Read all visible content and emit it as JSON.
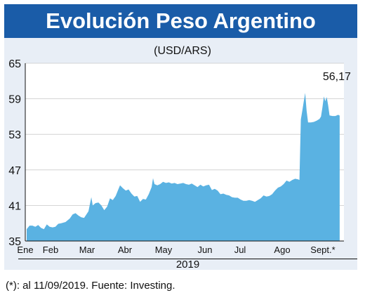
{
  "chart_data": {
    "type": "area",
    "title": "Evolución Peso Argentino",
    "subtitle": "(USD/ARS)",
    "xlabel": "2019",
    "ylabel": "",
    "ylim": [
      35,
      65
    ],
    "yticks": [
      35,
      41,
      47,
      53,
      59,
      65
    ],
    "month_labels": [
      "Ene",
      "Feb",
      "Mar",
      "Abr",
      "May",
      "Jun",
      "Jul",
      "Ago",
      "Sept.*"
    ],
    "last_value_label": "56,17",
    "series": [
      {
        "name": "",
        "color": "#5ab2e2",
        "points": [
          [
            1,
            37.0
          ],
          [
            3,
            37.6
          ],
          [
            5,
            37.6
          ],
          [
            7,
            37.4
          ],
          [
            9,
            37.7
          ],
          [
            11,
            37.2
          ],
          [
            13,
            37.0
          ],
          [
            15,
            37.8
          ],
          [
            17,
            37.4
          ],
          [
            19,
            37.3
          ],
          [
            21,
            37.4
          ],
          [
            23,
            37.9
          ],
          [
            25,
            38.0
          ],
          [
            28,
            38.2
          ],
          [
            31,
            38.8
          ],
          [
            33,
            39.5
          ],
          [
            35,
            39.7
          ],
          [
            37,
            39.3
          ],
          [
            39,
            39.0
          ],
          [
            41,
            38.9
          ],
          [
            44,
            40.0
          ],
          [
            46,
            42.4
          ],
          [
            47,
            41.0
          ],
          [
            49,
            41.4
          ],
          [
            51,
            41.5
          ],
          [
            53,
            41.0
          ],
          [
            55,
            40.2
          ],
          [
            57,
            40.8
          ],
          [
            59,
            42.2
          ],
          [
            61,
            41.9
          ],
          [
            63,
            42.6
          ],
          [
            65,
            43.8
          ],
          [
            66,
            44.4
          ],
          [
            68,
            43.9
          ],
          [
            70,
            43.5
          ],
          [
            72,
            43.7
          ],
          [
            74,
            43.0
          ],
          [
            76,
            42.5
          ],
          [
            78,
            42.6
          ],
          [
            80,
            41.6
          ],
          [
            82,
            42.1
          ],
          [
            84,
            42.0
          ],
          [
            86,
            42.9
          ],
          [
            88,
            44.1
          ],
          [
            89,
            45.6
          ],
          [
            90,
            44.6
          ],
          [
            92,
            44.4
          ],
          [
            94,
            44.6
          ],
          [
            96,
            45.0
          ],
          [
            98,
            44.8
          ],
          [
            100,
            44.9
          ],
          [
            102,
            44.7
          ],
          [
            104,
            44.8
          ],
          [
            106,
            44.6
          ],
          [
            108,
            44.7
          ],
          [
            110,
            44.8
          ],
          [
            112,
            44.6
          ],
          [
            114,
            44.5
          ],
          [
            116,
            44.7
          ],
          [
            118,
            44.4
          ],
          [
            120,
            44.1
          ],
          [
            122,
            44.5
          ],
          [
            124,
            44.2
          ],
          [
            126,
            44.4
          ],
          [
            128,
            44.5
          ],
          [
            130,
            43.6
          ],
          [
            132,
            43.8
          ],
          [
            134,
            43.5
          ],
          [
            136,
            42.9
          ],
          [
            138,
            43.0
          ],
          [
            140,
            42.8
          ],
          [
            142,
            42.7
          ],
          [
            144,
            42.4
          ],
          [
            146,
            42.3
          ],
          [
            148,
            42.3
          ],
          [
            150,
            42.0
          ],
          [
            152,
            41.8
          ],
          [
            154,
            41.8
          ],
          [
            156,
            41.9
          ],
          [
            158,
            41.8
          ],
          [
            160,
            41.6
          ],
          [
            162,
            41.9
          ],
          [
            164,
            42.2
          ],
          [
            166,
            42.7
          ],
          [
            168,
            42.5
          ],
          [
            170,
            42.6
          ],
          [
            172,
            42.9
          ],
          [
            174,
            43.5
          ],
          [
            176,
            44.0
          ],
          [
            178,
            44.2
          ],
          [
            180,
            44.6
          ],
          [
            182,
            45.2
          ],
          [
            184,
            45.0
          ],
          [
            186,
            45.3
          ],
          [
            188,
            45.5
          ],
          [
            190,
            45.4
          ],
          [
            191,
            45.3
          ],
          [
            192,
            55.5
          ],
          [
            193,
            57.0
          ],
          [
            194,
            58.5
          ],
          [
            195,
            60.0
          ],
          [
            196,
            57.0
          ],
          [
            197,
            55.0
          ],
          [
            199,
            55.0
          ],
          [
            201,
            55.1
          ],
          [
            203,
            55.3
          ],
          [
            205,
            55.6
          ],
          [
            206,
            56.0
          ],
          [
            207,
            57.5
          ],
          [
            208,
            59.4
          ],
          [
            209,
            58.6
          ],
          [
            210,
            59.3
          ],
          [
            211,
            57.9
          ],
          [
            212,
            56.2
          ],
          [
            214,
            56.1
          ],
          [
            216,
            56.1
          ],
          [
            218,
            56.3
          ],
          [
            219,
            56.17
          ]
        ]
      }
    ],
    "note": "(*): al 11/09/2019. Fuente: Investing."
  }
}
